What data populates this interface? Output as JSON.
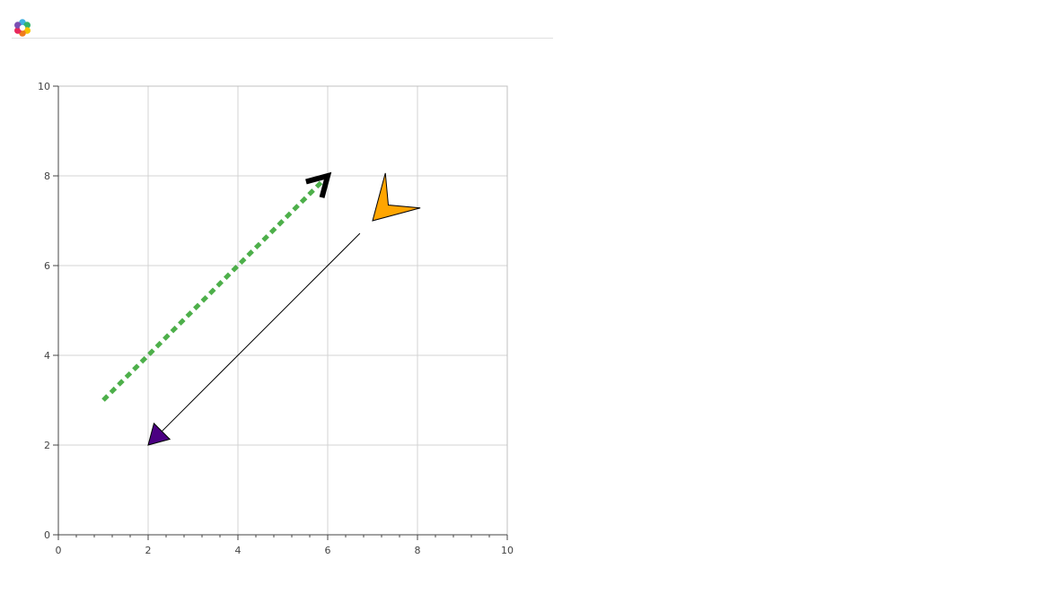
{
  "toolbar": {
    "logo_icon": "bokeh-logo-icon"
  },
  "chart_data": {
    "type": "scatter",
    "title": "",
    "xlabel": "",
    "ylabel": "",
    "xlim": [
      0,
      10
    ],
    "ylim": [
      0,
      10
    ],
    "grid": true,
    "x_major_ticks": [
      0,
      2,
      4,
      6,
      8,
      10
    ],
    "y_major_ticks": [
      0,
      2,
      4,
      6,
      8,
      10
    ],
    "x_tick_labels": [
      "0",
      "2",
      "4",
      "6",
      "8",
      "10"
    ],
    "y_tick_labels": [
      "0",
      "2",
      "4",
      "6",
      "8",
      "10"
    ],
    "arrows": [
      {
        "x_start": 1,
        "y_start": 3,
        "x_end": 6,
        "y_end": 8,
        "line_color": "#4daf4a",
        "line_dash": "dashed",
        "end_head": "open",
        "end_head_color": "#000000"
      },
      {
        "x_start": 7,
        "y_start": 7,
        "x_end": 2,
        "y_end": 2,
        "line_color": "#000000",
        "line_dash": "solid",
        "start_head": "vee",
        "start_head_fill": "#ffa500",
        "end_head": "normal",
        "end_head_fill": "#4b0082"
      }
    ]
  }
}
